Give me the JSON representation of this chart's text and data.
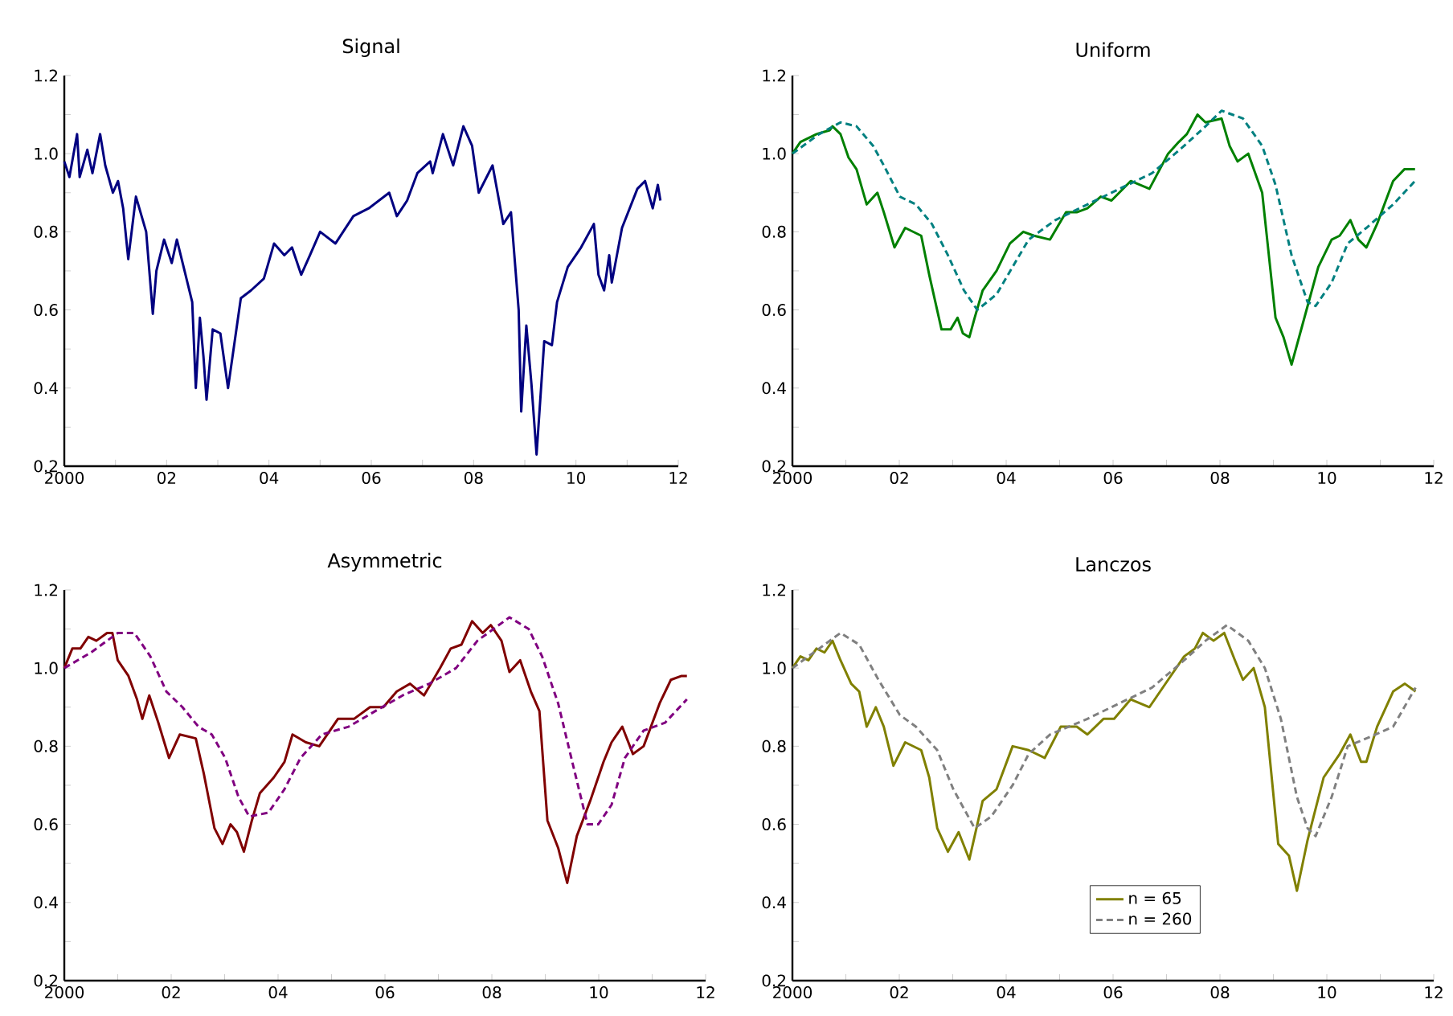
{
  "chart_data": [
    {
      "type": "line",
      "title": "Signal",
      "xlim": [
        2000,
        2012
      ],
      "ylim": [
        0.2,
        1.2
      ],
      "xticks": [
        {
          "value": 2000,
          "label": "2000"
        },
        {
          "value": 2001,
          "label": null
        },
        {
          "value": 2002,
          "label": "02"
        },
        {
          "value": 2003,
          "label": null
        },
        {
          "value": 2004,
          "label": "04"
        },
        {
          "value": 2005,
          "label": null
        },
        {
          "value": 2006,
          "label": "06"
        },
        {
          "value": 2007,
          "label": null
        },
        {
          "value": 2008,
          "label": "08"
        },
        {
          "value": 2009,
          "label": null
        },
        {
          "value": 2010,
          "label": "10"
        },
        {
          "value": 2011,
          "label": null
        },
        {
          "value": 2012,
          "label": "12"
        }
      ],
      "yticks": [
        {
          "value": 0.2,
          "label": "0.2"
        },
        {
          "value": 0.3,
          "label": null
        },
        {
          "value": 0.4,
          "label": "0.4"
        },
        {
          "value": 0.5,
          "label": null
        },
        {
          "value": 0.6,
          "label": "0.6"
        },
        {
          "value": 0.7,
          "label": null
        },
        {
          "value": 0.8,
          "label": "0.8"
        },
        {
          "value": 0.9,
          "label": null
        },
        {
          "value": 1.0,
          "label": "1.0"
        },
        {
          "value": 1.1,
          "label": null
        },
        {
          "value": 1.2,
          "label": "1.2"
        }
      ],
      "series": [
        {
          "color": "#000080",
          "line_style": "solid",
          "x": [
            2000.0,
            2000.1,
            2000.25,
            2000.3,
            2000.45,
            2000.55,
            2000.7,
            2000.8,
            2000.95,
            2001.05,
            2001.15,
            2001.25,
            2001.4,
            2001.6,
            2001.73,
            2001.8,
            2001.95,
            2002.1,
            2002.2,
            2002.35,
            2002.5,
            2002.57,
            2002.65,
            2002.72,
            2002.78,
            2002.9,
            2003.05,
            2003.2,
            2003.45,
            2003.65,
            2003.9,
            2004.1,
            2004.3,
            2004.45,
            2004.63,
            2004.8,
            2005.0,
            2005.3,
            2005.65,
            2005.95,
            2006.35,
            2006.5,
            2006.7,
            2006.9,
            2007.15,
            2007.2,
            2007.4,
            2007.6,
            2007.8,
            2007.97,
            2008.1,
            2008.37,
            2008.58,
            2008.73,
            2008.88,
            2008.93,
            2009.03,
            2009.13,
            2009.23,
            2009.38,
            2009.53,
            2009.63,
            2009.84,
            2010.1,
            2010.35,
            2010.44,
            2010.55,
            2010.65,
            2010.7,
            2010.9,
            2011.2,
            2011.35,
            2011.5,
            2011.6,
            2011.65
          ],
          "values": [
            0.98,
            0.94,
            1.05,
            0.94,
            1.01,
            0.95,
            1.05,
            0.97,
            0.9,
            0.93,
            0.86,
            0.73,
            0.89,
            0.8,
            0.59,
            0.7,
            0.78,
            0.72,
            0.78,
            0.7,
            0.62,
            0.4,
            0.58,
            0.48,
            0.37,
            0.55,
            0.54,
            0.4,
            0.63,
            0.65,
            0.68,
            0.77,
            0.74,
            0.76,
            0.69,
            0.74,
            0.8,
            0.77,
            0.84,
            0.86,
            0.9,
            0.84,
            0.88,
            0.95,
            0.98,
            0.95,
            1.05,
            0.97,
            1.07,
            1.02,
            0.9,
            0.97,
            0.82,
            0.85,
            0.6,
            0.34,
            0.56,
            0.41,
            0.23,
            0.52,
            0.51,
            0.62,
            0.71,
            0.76,
            0.82,
            0.69,
            0.65,
            0.74,
            0.67,
            0.81,
            0.91,
            0.93,
            0.86,
            0.92,
            0.88
          ]
        }
      ]
    },
    {
      "type": "line",
      "title": "Uniform",
      "xlim": [
        2000,
        2012
      ],
      "ylim": [
        0.2,
        1.2
      ],
      "xticks": [
        {
          "value": 2000,
          "label": "2000"
        },
        {
          "value": 2001,
          "label": null
        },
        {
          "value": 2002,
          "label": "02"
        },
        {
          "value": 2003,
          "label": null
        },
        {
          "value": 2004,
          "label": "04"
        },
        {
          "value": 2005,
          "label": null
        },
        {
          "value": 2006,
          "label": "06"
        },
        {
          "value": 2007,
          "label": null
        },
        {
          "value": 2008,
          "label": "08"
        },
        {
          "value": 2009,
          "label": null
        },
        {
          "value": 2010,
          "label": "10"
        },
        {
          "value": 2011,
          "label": null
        },
        {
          "value": 2012,
          "label": "12"
        }
      ],
      "yticks": [
        {
          "value": 0.2,
          "label": "0.2"
        },
        {
          "value": 0.3,
          "label": null
        },
        {
          "value": 0.4,
          "label": "0.4"
        },
        {
          "value": 0.5,
          "label": null
        },
        {
          "value": 0.6,
          "label": "0.6"
        },
        {
          "value": 0.7,
          "label": null
        },
        {
          "value": 0.8,
          "label": "0.8"
        },
        {
          "value": 0.9,
          "label": null
        },
        {
          "value": 1.0,
          "label": "1.0"
        },
        {
          "value": 1.1,
          "label": null
        },
        {
          "value": 1.2,
          "label": "1.2"
        }
      ],
      "series": [
        {
          "color": "#008000",
          "line_style": "solid",
          "x": [
            2000,
            2000.15,
            2000.45,
            2000.7,
            2000.75,
            2000.9,
            2001.05,
            2001.2,
            2001.39,
            2001.59,
            2001.71,
            2001.91,
            2002.11,
            2002.41,
            2002.56,
            2002.79,
            2002.96,
            2003.09,
            2003.19,
            2003.31,
            2003.41,
            2003.56,
            2003.82,
            2004.07,
            2004.32,
            2004.52,
            2004.82,
            2005.12,
            2005.32,
            2005.52,
            2005.77,
            2005.97,
            2006.33,
            2006.68,
            2007.03,
            2007.23,
            2007.38,
            2007.58,
            2007.73,
            2008.03,
            2008.18,
            2008.33,
            2008.53,
            2008.79,
            2009.04,
            2009.19,
            2009.34,
            2009.54,
            2009.84,
            2010.09,
            2010.24,
            2010.44,
            2010.59,
            2010.74,
            2010.94,
            2011.24,
            2011.45,
            2011.65
          ],
          "values": [
            1.0,
            1.03,
            1.05,
            1.06,
            1.07,
            1.05,
            0.99,
            0.96,
            0.87,
            0.9,
            0.85,
            0.76,
            0.81,
            0.79,
            0.69,
            0.55,
            0.55,
            0.58,
            0.54,
            0.53,
            0.58,
            0.65,
            0.7,
            0.77,
            0.8,
            0.79,
            0.78,
            0.85,
            0.85,
            0.86,
            0.89,
            0.88,
            0.93,
            0.91,
            1.0,
            1.03,
            1.05,
            1.1,
            1.08,
            1.09,
            1.02,
            0.98,
            1.0,
            0.9,
            0.58,
            0.53,
            0.46,
            0.56,
            0.71,
            0.78,
            0.79,
            0.83,
            0.78,
            0.76,
            0.82,
            0.93,
            0.96,
            0.96
          ]
        },
        {
          "color": "#008080",
          "line_style": "dashed",
          "x": [
            2000,
            2000.5,
            2000.9,
            2001.2,
            2001.51,
            2001.71,
            2002.01,
            2002.31,
            2002.61,
            2002.91,
            2003.21,
            2003.46,
            2003.82,
            2004.12,
            2004.42,
            2004.92,
            2005.52,
            2006.12,
            2006.73,
            2007.33,
            2007.73,
            2008.03,
            2008.43,
            2008.79,
            2009.04,
            2009.34,
            2009.64,
            2009.79,
            2010.09,
            2010.39,
            2010.74,
            2011.24,
            2011.65
          ],
          "values": [
            1.0,
            1.05,
            1.08,
            1.07,
            1.02,
            0.97,
            0.89,
            0.87,
            0.82,
            0.74,
            0.65,
            0.6,
            0.64,
            0.71,
            0.78,
            0.83,
            0.87,
            0.91,
            0.95,
            1.02,
            1.07,
            1.11,
            1.09,
            1.02,
            0.92,
            0.74,
            0.62,
            0.61,
            0.67,
            0.77,
            0.81,
            0.87,
            0.93
          ]
        }
      ]
    },
    {
      "type": "line",
      "title": "Asymmetric",
      "xlim": [
        2000,
        2012
      ],
      "ylim": [
        0.2,
        1.2
      ],
      "xticks": [
        {
          "value": 2000,
          "label": "2000"
        },
        {
          "value": 2001,
          "label": null
        },
        {
          "value": 2002,
          "label": "02"
        },
        {
          "value": 2003,
          "label": null
        },
        {
          "value": 2004,
          "label": "04"
        },
        {
          "value": 2005,
          "label": null
        },
        {
          "value": 2006,
          "label": "06"
        },
        {
          "value": 2007,
          "label": null
        },
        {
          "value": 2008,
          "label": "08"
        },
        {
          "value": 2009,
          "label": null
        },
        {
          "value": 2010,
          "label": "10"
        },
        {
          "value": 2011,
          "label": null
        },
        {
          "value": 2012,
          "label": "12"
        }
      ],
      "yticks": [
        {
          "value": 0.2,
          "label": "0.2"
        },
        {
          "value": 0.3,
          "label": null
        },
        {
          "value": 0.4,
          "label": "0.4"
        },
        {
          "value": 0.5,
          "label": null
        },
        {
          "value": 0.6,
          "label": "0.6"
        },
        {
          "value": 0.7,
          "label": null
        },
        {
          "value": 0.8,
          "label": "0.8"
        },
        {
          "value": 0.9,
          "label": null
        },
        {
          "value": 1.0,
          "label": "1.0"
        },
        {
          "value": 1.1,
          "label": null
        },
        {
          "value": 1.2,
          "label": "1.2"
        }
      ],
      "series": [
        {
          "color": "#800000",
          "line_style": "solid",
          "x": [
            2000,
            2000.15,
            2000.3,
            2000.45,
            2000.6,
            2000.8,
            2000.9,
            2001.0,
            2001.2,
            2001.36,
            2001.46,
            2001.59,
            2001.76,
            2001.96,
            2002.16,
            2002.46,
            2002.61,
            2002.81,
            2002.96,
            2003.11,
            2003.23,
            2003.36,
            2003.51,
            2003.66,
            2003.92,
            2004.12,
            2004.27,
            2004.52,
            2004.77,
            2005.12,
            2005.42,
            2005.72,
            2005.97,
            2006.22,
            2006.47,
            2006.73,
            2007.03,
            2007.23,
            2007.43,
            2007.63,
            2007.83,
            2007.98,
            2008.18,
            2008.33,
            2008.53,
            2008.73,
            2008.89,
            2009.04,
            2009.24,
            2009.41,
            2009.59,
            2009.84,
            2010.09,
            2010.24,
            2010.44,
            2010.64,
            2010.84,
            2011.14,
            2011.35,
            2011.55,
            2011.65
          ],
          "values": [
            1.0,
            1.05,
            1.05,
            1.08,
            1.07,
            1.09,
            1.09,
            1.02,
            0.98,
            0.92,
            0.87,
            0.93,
            0.86,
            0.77,
            0.83,
            0.82,
            0.73,
            0.59,
            0.55,
            0.6,
            0.58,
            0.53,
            0.61,
            0.68,
            0.72,
            0.76,
            0.83,
            0.81,
            0.8,
            0.87,
            0.87,
            0.9,
            0.9,
            0.94,
            0.96,
            0.93,
            1.0,
            1.05,
            1.06,
            1.12,
            1.09,
            1.11,
            1.07,
            0.99,
            1.02,
            0.94,
            0.89,
            0.61,
            0.54,
            0.45,
            0.57,
            0.66,
            0.76,
            0.81,
            0.85,
            0.78,
            0.8,
            0.91,
            0.97,
            0.98,
            0.98
          ]
        },
        {
          "color": "#800080",
          "line_style": "dashed",
          "x": [
            2000,
            2000.5,
            2001.0,
            2001.31,
            2001.61,
            2001.91,
            2002.21,
            2002.51,
            2002.76,
            2003.01,
            2003.26,
            2003.46,
            2003.82,
            2004.12,
            2004.42,
            2004.82,
            2005.32,
            2005.82,
            2006.33,
            2006.83,
            2007.33,
            2007.73,
            2008.03,
            2008.33,
            2008.69,
            2008.94,
            2009.24,
            2009.54,
            2009.79,
            2009.99,
            2010.24,
            2010.49,
            2010.84,
            2011.24,
            2011.65
          ],
          "values": [
            1.0,
            1.04,
            1.09,
            1.09,
            1.03,
            0.94,
            0.9,
            0.85,
            0.83,
            0.77,
            0.67,
            0.62,
            0.63,
            0.69,
            0.77,
            0.83,
            0.85,
            0.89,
            0.93,
            0.96,
            1.0,
            1.07,
            1.1,
            1.13,
            1.1,
            1.03,
            0.91,
            0.74,
            0.6,
            0.6,
            0.65,
            0.77,
            0.84,
            0.86,
            0.92
          ]
        }
      ]
    },
    {
      "type": "line",
      "title": "Lanczos",
      "xlim": [
        2000,
        2012
      ],
      "ylim": [
        0.2,
        1.2
      ],
      "legend": "bottom",
      "xticks": [
        {
          "value": 2000,
          "label": "2000"
        },
        {
          "value": 2001,
          "label": null
        },
        {
          "value": 2002,
          "label": "02"
        },
        {
          "value": 2003,
          "label": null
        },
        {
          "value": 2004,
          "label": "04"
        },
        {
          "value": 2005,
          "label": null
        },
        {
          "value": 2006,
          "label": "06"
        },
        {
          "value": 2007,
          "label": null
        },
        {
          "value": 2008,
          "label": "08"
        },
        {
          "value": 2009,
          "label": null
        },
        {
          "value": 2010,
          "label": "10"
        },
        {
          "value": 2011,
          "label": null
        },
        {
          "value": 2012,
          "label": "12"
        }
      ],
      "yticks": [
        {
          "value": 0.2,
          "label": "0.2"
        },
        {
          "value": 0.3,
          "label": null
        },
        {
          "value": 0.4,
          "label": "0.4"
        },
        {
          "value": 0.5,
          "label": null
        },
        {
          "value": 0.6,
          "label": "0.6"
        },
        {
          "value": 0.7,
          "label": null
        },
        {
          "value": 0.8,
          "label": "0.8"
        },
        {
          "value": 0.9,
          "label": null
        },
        {
          "value": 1.0,
          "label": "1.0"
        },
        {
          "value": 1.1,
          "label": null
        },
        {
          "value": 1.2,
          "label": "1.2"
        }
      ],
      "series": [
        {
          "name": "n = 65",
          "color": "#808000",
          "line_style": "solid",
          "x": [
            2000,
            2000.15,
            2000.3,
            2000.45,
            2000.6,
            2000.75,
            2000.9,
            2001.1,
            2001.25,
            2001.39,
            2001.56,
            2001.71,
            2001.89,
            2002.11,
            2002.41,
            2002.56,
            2002.71,
            2002.91,
            2003.11,
            2003.31,
            2003.56,
            2003.82,
            2004.12,
            2004.42,
            2004.72,
            2005.02,
            2005.32,
            2005.52,
            2005.82,
            2006.02,
            2006.33,
            2006.68,
            2007.03,
            2007.33,
            2007.53,
            2007.68,
            2007.88,
            2008.08,
            2008.28,
            2008.43,
            2008.63,
            2008.84,
            2009.09,
            2009.29,
            2009.44,
            2009.64,
            2009.94,
            2010.24,
            2010.44,
            2010.64,
            2010.74,
            2010.94,
            2011.24,
            2011.46,
            2011.66
          ],
          "values": [
            1.0,
            1.03,
            1.02,
            1.05,
            1.04,
            1.07,
            1.02,
            0.96,
            0.94,
            0.85,
            0.9,
            0.85,
            0.75,
            0.81,
            0.79,
            0.72,
            0.59,
            0.53,
            0.58,
            0.51,
            0.66,
            0.69,
            0.8,
            0.79,
            0.77,
            0.85,
            0.85,
            0.83,
            0.87,
            0.87,
            0.92,
            0.9,
            0.97,
            1.03,
            1.05,
            1.09,
            1.07,
            1.09,
            1.02,
            0.97,
            1.0,
            0.9,
            0.55,
            0.52,
            0.43,
            0.56,
            0.72,
            0.78,
            0.83,
            0.76,
            0.76,
            0.85,
            0.94,
            0.96,
            0.94
          ]
        },
        {
          "name": "n = 260",
          "color": "#808080",
          "line_style": "dashed",
          "x": [
            2000,
            2000.5,
            2000.9,
            2001.25,
            2001.61,
            2002.01,
            2002.31,
            2002.71,
            2003.01,
            2003.41,
            2003.72,
            2004.12,
            2004.42,
            2004.82,
            2005.52,
            2006.12,
            2006.73,
            2007.33,
            2007.73,
            2008.13,
            2008.53,
            2008.84,
            2009.14,
            2009.44,
            2009.64,
            2009.79,
            2010.09,
            2010.39,
            2010.74,
            2011.24,
            2011.66
          ],
          "values": [
            1.0,
            1.05,
            1.09,
            1.06,
            0.97,
            0.88,
            0.85,
            0.79,
            0.69,
            0.59,
            0.62,
            0.7,
            0.78,
            0.83,
            0.87,
            0.91,
            0.95,
            1.02,
            1.07,
            1.11,
            1.07,
            1.0,
            0.87,
            0.67,
            0.59,
            0.57,
            0.67,
            0.8,
            0.82,
            0.85,
            0.95
          ]
        }
      ]
    }
  ]
}
